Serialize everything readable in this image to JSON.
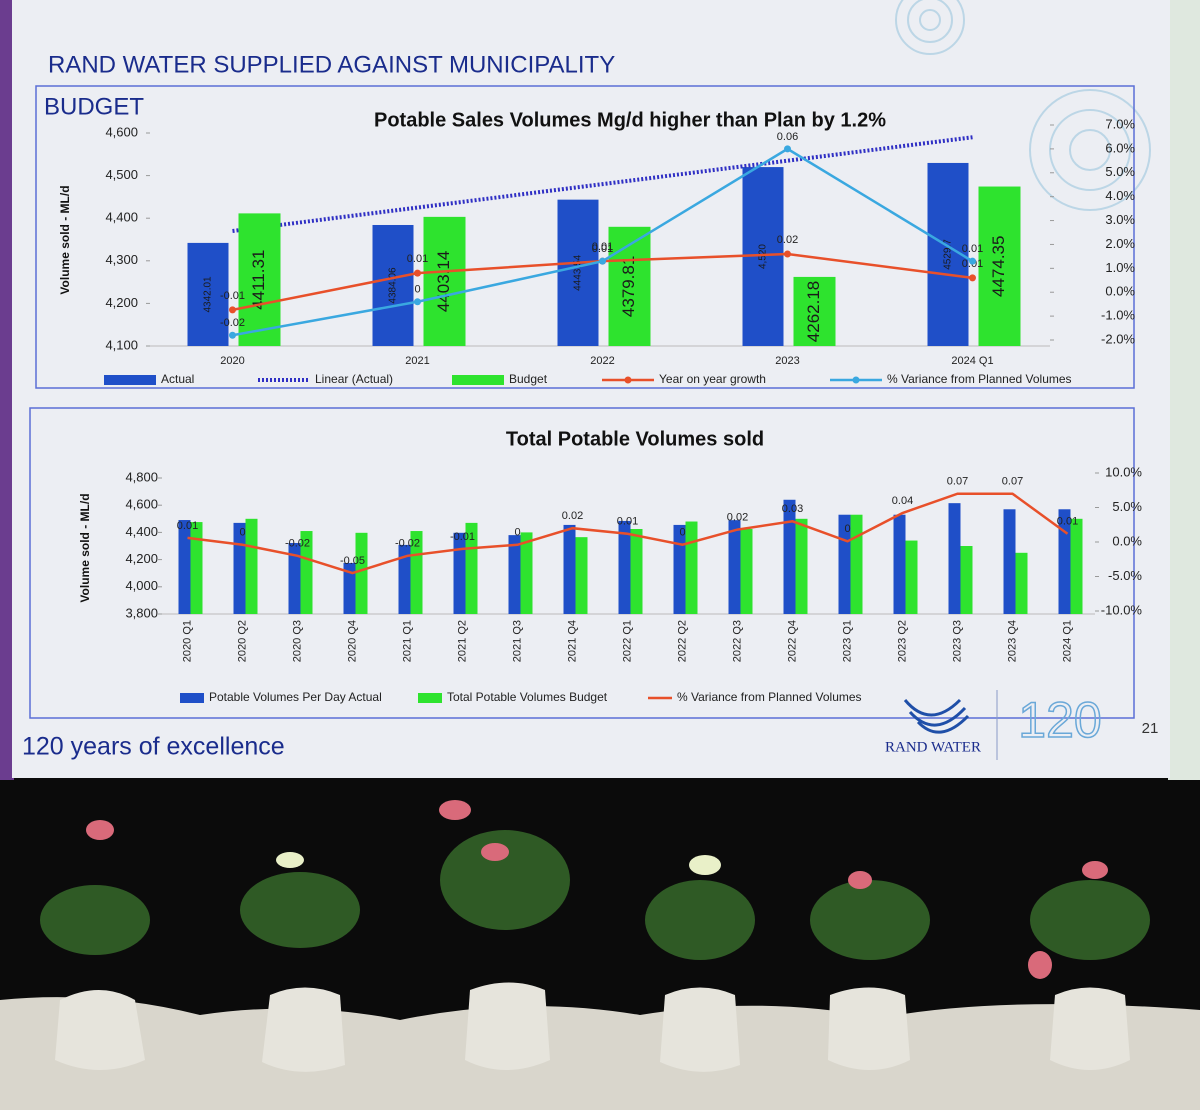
{
  "slide": {
    "title_lines": [
      "RAND WATER SUPPLIED AGAINST MUNICIPALITY",
      "BUDGET"
    ],
    "footer": "120 years of excellence",
    "logo_text": "RAND WATER",
    "anniversary": "120",
    "page_number": "21"
  },
  "chart_data": [
    {
      "type": "bar",
      "title": "Potable Sales Volumes Mg/d higher than Plan by 1.2%",
      "y_label": "Volume sold - ML/d",
      "categories": [
        "2020",
        "2021",
        "2022",
        "2023",
        "2024 Q1"
      ],
      "ylim": [
        4100,
        4600
      ],
      "yticks": [
        {
          "value": 4100,
          "label": "4,100"
        },
        {
          "value": 4200,
          "label": "4,200"
        },
        {
          "value": 4300,
          "label": "4,300"
        },
        {
          "value": 4400,
          "label": "4,400"
        },
        {
          "value": 4500,
          "label": "4,500"
        },
        {
          "value": 4600,
          "label": "4,600"
        }
      ],
      "y2lim": [
        -0.02,
        0.07
      ],
      "y2ticks": [
        {
          "value": -0.02,
          "label": "-2.0%"
        },
        {
          "value": -0.01,
          "label": "-1.0%"
        },
        {
          "value": 0,
          "label": "0.0%"
        },
        {
          "value": 0.01,
          "label": "1.0%"
        },
        {
          "value": 0.02,
          "label": "2.0%"
        },
        {
          "value": 0.03,
          "label": "3.0%"
        },
        {
          "value": 0.04,
          "label": "4.0%"
        },
        {
          "value": 0.05,
          "label": "5.0%"
        },
        {
          "value": 0.06,
          "label": "6.0%"
        },
        {
          "value": 0.07,
          "label": "7.0%"
        }
      ],
      "series": [
        {
          "name": "Actual",
          "type": "bar",
          "color": "#1f4fc8",
          "data_labels": true,
          "values": [
            4342.01,
            4384.06,
            4443.54,
            4520,
            4529.7
          ],
          "value_labels": [
            "4342.01",
            "4384.06",
            "4443.54",
            "4,520",
            "4529.7"
          ]
        },
        {
          "name": "Linear (Actual)",
          "type": "line",
          "line_style": "dotted",
          "color": "#2f2fc4",
          "values": [
            4370,
            4425,
            4480,
            4535,
            4590
          ]
        },
        {
          "name": "Budget",
          "type": "bar",
          "color": "#2ee32e",
          "data_labels": true,
          "values": [
            4411.31,
            4403.14,
            4379.81,
            4262.18,
            4474.35
          ]
        },
        {
          "name": "Year on year growth",
          "type": "line",
          "axis": "y2",
          "color": "#e8502a",
          "markers": true,
          "data_labels": true,
          "values": [
            -0.0074,
            0.008,
            0.013,
            0.016,
            0.006
          ],
          "value_labels": [
            "-0.01",
            "0.01",
            "0.01",
            "0.02",
            "0.01"
          ]
        },
        {
          "name": "% Variance from Planned Volumes",
          "type": "line",
          "axis": "y2",
          "color": "#3aa8e0",
          "markers": true,
          "data_labels": true,
          "values": [
            -0.018,
            -0.004,
            0.013,
            0.06,
            0.013
          ],
          "value_labels": [
            "-0.02",
            "0",
            "0.01",
            "0.06",
            "0.01"
          ]
        }
      ]
    },
    {
      "type": "bar",
      "title": "Total Potable Volumes sold",
      "y_label": "Volume sold - ML/d",
      "categories": [
        "2020 Q1",
        "2020 Q2",
        "2020 Q3",
        "2020 Q4",
        "2021 Q1",
        "2021 Q2",
        "2021 Q3",
        "2021 Q4",
        "2022 Q1",
        "2022 Q2",
        "2022 Q3",
        "2022 Q4",
        "2023 Q1",
        "2023 Q2",
        "2023 Q3",
        "2023 Q4",
        "2024 Q1"
      ],
      "ylim": [
        3800,
        4800
      ],
      "yticks": [
        {
          "value": 3800,
          "label": "3,800"
        },
        {
          "value": 4000,
          "label": "4,000"
        },
        {
          "value": 4200,
          "label": "4,200"
        },
        {
          "value": 4400,
          "label": "4,400"
        },
        {
          "value": 4600,
          "label": "4,600"
        },
        {
          "value": 4800,
          "label": "4,800"
        }
      ],
      "y2lim": [
        -0.1,
        0.1
      ],
      "y2ticks": [
        {
          "value": -0.1,
          "label": "-10.0%"
        },
        {
          "value": -0.05,
          "label": "-5.0%"
        },
        {
          "value": 0,
          "label": "0.0%"
        },
        {
          "value": 0.05,
          "label": "5.0%"
        },
        {
          "value": 0.1,
          "label": "10.0%"
        }
      ],
      "series": [
        {
          "name": "Potable Volumes Per Day Actual",
          "type": "bar",
          "color": "#1f4fc8",
          "values": [
            4491,
            4470,
            4322,
            4175,
            4308,
            4397,
            4380,
            4455,
            4484,
            4455,
            4490,
            4640,
            4530,
            4530,
            4615,
            4570,
            4570
          ]
        },
        {
          "name": "Total Potable Volumes Budget",
          "type": "bar",
          "color": "#2ee32e",
          "values": [
            4476,
            4500,
            4410,
            4397,
            4410,
            4470,
            4400,
            4365,
            4425,
            4480,
            4425,
            4500,
            4530,
            4340,
            4300,
            4250,
            4500
          ]
        },
        {
          "name": "% Variance from Planned Volumes",
          "type": "line",
          "axis": "y2",
          "color": "#e8502a",
          "data_labels": true,
          "values": [
            0.006,
            -0.004,
            -0.02,
            -0.045,
            -0.02,
            -0.01,
            -0.004,
            0.02,
            0.012,
            -0.004,
            0.018,
            0.03,
            0.001,
            0.042,
            0.07,
            0.07,
            0.012
          ],
          "value_labels": [
            "0.01",
            "0",
            "-0.02",
            "-0.05",
            "-0.02",
            "-0.01",
            "0",
            "0.02",
            "0.01",
            "0",
            "0.02",
            "0.03",
            "0",
            "0.04",
            "0.07",
            "0.07",
            "0.01"
          ]
        }
      ]
    }
  ]
}
